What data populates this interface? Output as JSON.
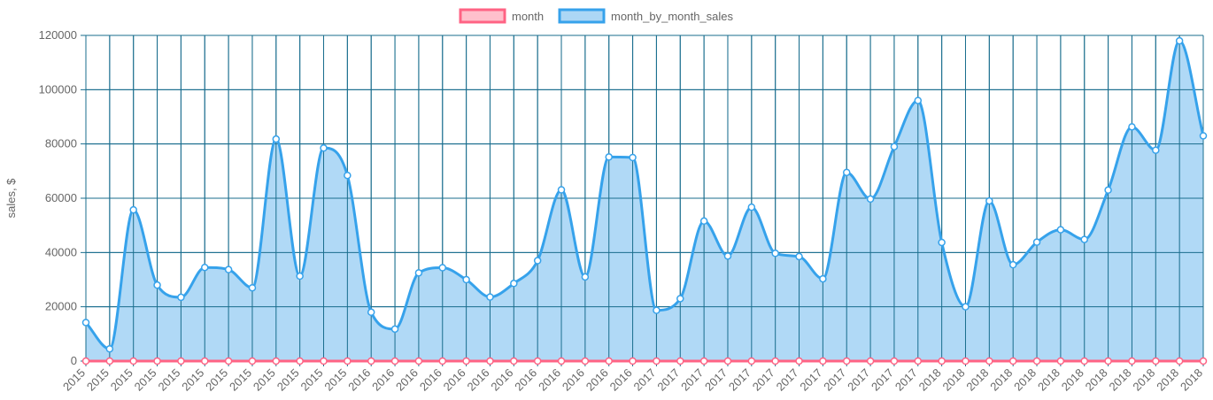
{
  "chart_data": {
    "type": "area",
    "ylabel": "sales, $",
    "ylim": [
      0,
      120000
    ],
    "y_ticks": [
      0,
      20000,
      40000,
      60000,
      80000,
      100000,
      120000
    ],
    "grid": true,
    "legend_position": "top",
    "categories": [
      "2015",
      "2015",
      "2015",
      "2015",
      "2015",
      "2015",
      "2015",
      "2015",
      "2015",
      "2015",
      "2015",
      "2015",
      "2016",
      "2016",
      "2016",
      "2016",
      "2016",
      "2016",
      "2016",
      "2016",
      "2016",
      "2016",
      "2016",
      "2016",
      "2017",
      "2017",
      "2017",
      "2017",
      "2017",
      "2017",
      "2017",
      "2017",
      "2017",
      "2017",
      "2017",
      "2017",
      "2018",
      "2018",
      "2018",
      "2018",
      "2018",
      "2018",
      "2018",
      "2018",
      "2018",
      "2018",
      "2018",
      "2018"
    ],
    "series": [
      {
        "name": "month",
        "color": "#ff6384",
        "fill": "#ffc0cc",
        "values": [
          0,
          0,
          0,
          0,
          0,
          0,
          0,
          0,
          0,
          0,
          0,
          0,
          0,
          0,
          0,
          0,
          0,
          0,
          0,
          0,
          0,
          0,
          0,
          0,
          0,
          0,
          0,
          0,
          0,
          0,
          0,
          0,
          0,
          0,
          0,
          0,
          0,
          0,
          0,
          0,
          0,
          0,
          0,
          0,
          0,
          0,
          0,
          0
        ]
      },
      {
        "name": "month_by_month_sales",
        "color": "#36a2eb",
        "fill": "#acd7f5",
        "values": [
          14200,
          4500,
          55700,
          28000,
          23500,
          34500,
          33700,
          27000,
          81800,
          31300,
          78500,
          68400,
          18000,
          11800,
          32500,
          34400,
          30000,
          23600,
          28600,
          37000,
          63100,
          31000,
          75200,
          75000,
          18700,
          23000,
          51600,
          38700,
          56700,
          39700,
          38500,
          30300,
          69500,
          59700,
          79000,
          96000,
          43700,
          20000,
          59000,
          35500,
          43800,
          48400,
          44800,
          63000,
          86300,
          77700,
          118000,
          83000
        ]
      }
    ]
  },
  "colors": {
    "grid": "#1a6e8e",
    "axis_text": "#666666"
  }
}
